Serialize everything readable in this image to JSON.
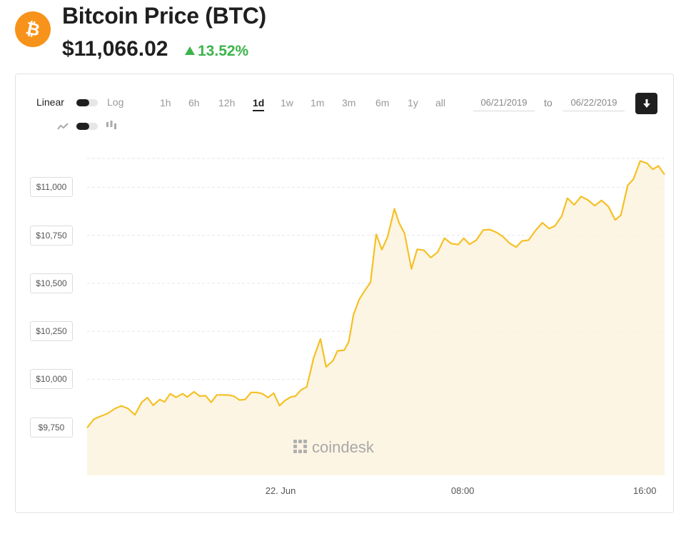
{
  "header": {
    "logo_icon": "bitcoin-icon",
    "title": "Bitcoin Price (BTC)",
    "price": "$11,066.02",
    "change": "13.52%",
    "change_color": "#3cb44b",
    "accent_color": "#f7931a"
  },
  "controls": {
    "scale_linear_label": "Linear",
    "scale_log_label": "Log",
    "scale_selected": "Linear",
    "line_icon": "line-chart-icon",
    "candle_icon": "candlestick-icon",
    "chart_style_selected": "line",
    "ranges": [
      "1h",
      "6h",
      "12h",
      "1d",
      "1w",
      "1m",
      "3m",
      "6m",
      "1y",
      "all"
    ],
    "active_range": "1d",
    "date_from": "06/21/2019",
    "to_label": "to",
    "date_to": "06/22/2019",
    "download_icon": "download-icon"
  },
  "watermark": "coindesk",
  "chart_data": {
    "type": "area",
    "title": "",
    "xlabel": "",
    "ylabel": "",
    "line_color": "#f5c026",
    "fill_color": "#fdf3dc",
    "grid": true,
    "ylim": [
      9500,
      11150
    ],
    "yticks": [
      "$9,750",
      "$10,000",
      "$10,250",
      "$10,500",
      "$10,750",
      "$11,000"
    ],
    "ytick_values": [
      9750,
      10000,
      10250,
      10500,
      10750,
      11000
    ],
    "xticks": [
      "22. Jun",
      "08:00",
      "16:00"
    ],
    "xtick_values": [
      0,
      8,
      16
    ],
    "x_range": [
      -8.5,
      16.87
    ],
    "x_unit": "hours relative to 22 Jun 00:00",
    "x": [
      -8.5,
      -8.2,
      -7.9,
      -7.6,
      -7.3,
      -7.0,
      -6.7,
      -6.4,
      -6.1,
      -5.85,
      -5.6,
      -5.3,
      -5.1,
      -4.85,
      -4.6,
      -4.3,
      -4.1,
      -3.8,
      -3.55,
      -3.3,
      -3.05,
      -2.8,
      -2.5,
      -2.3,
      -2.05,
      -1.8,
      -1.55,
      -1.3,
      -1.05,
      -0.8,
      -0.55,
      -0.3,
      -0.05,
      0.2,
      0.45,
      0.65,
      0.9,
      1.15,
      1.45,
      1.75,
      2.0,
      2.3,
      2.5,
      2.8,
      3.0,
      3.2,
      3.45,
      3.7,
      3.95,
      4.2,
      4.45,
      4.7,
      5.0,
      5.2,
      5.45,
      5.75,
      6.0,
      6.3,
      6.6,
      6.9,
      7.2,
      7.5,
      7.8,
      8.05,
      8.3,
      8.6,
      8.9,
      9.2,
      9.5,
      9.75,
      10.05,
      10.35,
      10.6,
      10.9,
      11.2,
      11.5,
      11.8,
      12.05,
      12.35,
      12.6,
      12.9,
      13.2,
      13.5,
      13.8,
      14.1,
      14.4,
      14.7,
      14.95,
      15.25,
      15.5,
      15.8,
      16.1,
      16.35,
      16.6,
      16.87
    ],
    "y": [
      9748,
      9793,
      9808,
      9822,
      9846,
      9862,
      9848,
      9815,
      9880,
      9905,
      9865,
      9895,
      9882,
      9925,
      9906,
      9925,
      9908,
      9935,
      9912,
      9915,
      9880,
      9919,
      9919,
      9918,
      9912,
      9892,
      9895,
      9932,
      9932,
      9925,
      9905,
      9928,
      9863,
      9890,
      9908,
      9912,
      9945,
      9960,
      10110,
      10210,
      10065,
      10097,
      10148,
      10152,
      10197,
      10335,
      10415,
      10462,
      10505,
      10755,
      10675,
      10741,
      10888,
      10816,
      10759,
      10575,
      10677,
      10672,
      10634,
      10662,
      10735,
      10707,
      10701,
      10735,
      10703,
      10725,
      10777,
      10780,
      10764,
      10745,
      10710,
      10688,
      10720,
      10725,
      10775,
      10815,
      10785,
      10798,
      10850,
      10943,
      10909,
      10952,
      10934,
      10904,
      10932,
      10900,
      10830,
      10855,
      11010,
      11042,
      11137,
      11125,
      11093,
      11111,
      11066
    ]
  }
}
